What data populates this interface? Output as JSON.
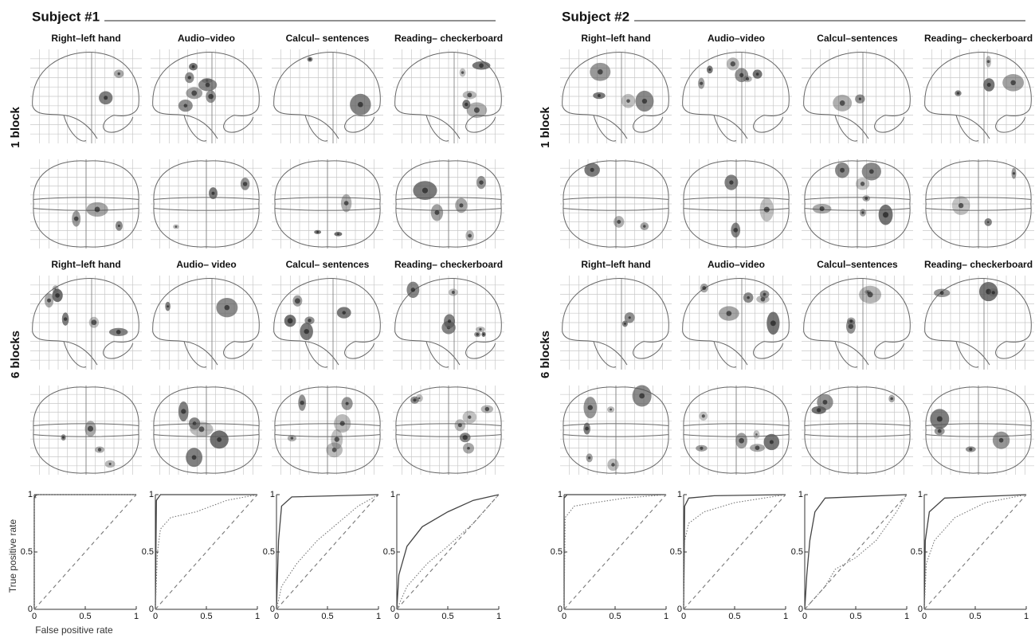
{
  "subjects": [
    {
      "title": "Subject #1",
      "rows": [
        {
          "label": "1 block",
          "columns": [
            "Right–left hand",
            "Audio–video",
            "Calcul– sentences",
            "Reading– checkerboard"
          ]
        },
        {
          "label": "6 blocks",
          "columns": [
            "Right–left hand",
            "Audio– video",
            "Calcul– sentences",
            "Reading– checkerboard"
          ]
        }
      ]
    },
    {
      "title": "Subject #2",
      "rows": [
        {
          "label": "1 block",
          "columns": [
            "Right–left hand",
            "Audio–video",
            "Calcul–sentences",
            "Reading– checkerboard"
          ]
        },
        {
          "label": "6 blocks",
          "columns": [
            "Right–left hand",
            "Audio–video",
            "Calcul–sentences",
            "Reading– checkerboard"
          ]
        }
      ]
    }
  ],
  "chart_data": [
    {
      "type": "line",
      "y_label": "True positive rate",
      "x_label": "False positive rate",
      "xlim": [
        0,
        1
      ],
      "ylim": [
        0,
        1
      ],
      "xticks": [
        0,
        0.5,
        1
      ],
      "yticks": [
        0,
        0.5,
        1
      ],
      "series": [
        {
          "color": "#444444",
          "style": "solid",
          "x": [
            0,
            0,
            0.02,
            1
          ],
          "values": [
            0,
            0.97,
            1,
            1
          ]
        },
        {
          "color": "#777777",
          "style": "dotted",
          "x": [
            0,
            0,
            0.03,
            1
          ],
          "values": [
            0,
            0.95,
            1,
            1
          ]
        },
        {
          "color": "#777777",
          "style": "dashed",
          "x": [
            0,
            1
          ],
          "values": [
            0,
            1
          ]
        }
      ]
    },
    {
      "type": "line",
      "xlim": [
        0,
        1
      ],
      "ylim": [
        0,
        1
      ],
      "xticks": [
        0,
        0.5,
        1
      ],
      "yticks": [
        0,
        0.5,
        1
      ],
      "series": [
        {
          "color": "#444444",
          "style": "solid",
          "x": [
            0,
            0.01,
            0.05,
            1
          ],
          "values": [
            0,
            0.95,
            1,
            1
          ]
        },
        {
          "color": "#777777",
          "style": "dotted",
          "x": [
            0,
            0.02,
            0.05,
            0.15,
            0.4,
            0.55,
            0.7,
            1
          ],
          "values": [
            0,
            0.5,
            0.7,
            0.8,
            0.85,
            0.9,
            0.95,
            1
          ]
        },
        {
          "color": "#777777",
          "style": "dashed",
          "x": [
            0,
            1
          ],
          "values": [
            0,
            1
          ]
        }
      ]
    },
    {
      "type": "line",
      "xlim": [
        0,
        1
      ],
      "ylim": [
        0,
        1
      ],
      "xticks": [
        0,
        0.5,
        1
      ],
      "yticks": [
        0,
        0.5,
        1
      ],
      "series": [
        {
          "color": "#444444",
          "style": "solid",
          "x": [
            0,
            0.02,
            0.05,
            0.15,
            1
          ],
          "values": [
            0,
            0.6,
            0.9,
            0.98,
            1
          ]
        },
        {
          "color": "#777777",
          "style": "dotted",
          "x": [
            0,
            0.05,
            0.2,
            0.4,
            0.6,
            0.8,
            1
          ],
          "values": [
            0,
            0.2,
            0.4,
            0.6,
            0.75,
            0.9,
            1
          ]
        },
        {
          "color": "#777777",
          "style": "dashed",
          "x": [
            0,
            1
          ],
          "values": [
            0,
            1
          ]
        }
      ]
    },
    {
      "type": "line",
      "xlim": [
        0,
        1
      ],
      "ylim": [
        0,
        1
      ],
      "xticks": [
        0,
        0.5,
        1
      ],
      "yticks": [
        0,
        0.5,
        1
      ],
      "series": [
        {
          "color": "#444444",
          "style": "solid",
          "x": [
            0,
            0.02,
            0.1,
            0.25,
            0.5,
            0.75,
            1
          ],
          "values": [
            0,
            0.3,
            0.55,
            0.72,
            0.85,
            0.95,
            1
          ]
        },
        {
          "color": "#777777",
          "style": "dotted",
          "x": [
            0,
            0.1,
            0.3,
            0.5,
            0.75,
            1
          ],
          "values": [
            0,
            0.2,
            0.4,
            0.55,
            0.75,
            1
          ]
        },
        {
          "color": "#777777",
          "style": "dashed",
          "x": [
            0,
            1
          ],
          "values": [
            0,
            1
          ]
        }
      ]
    },
    {
      "type": "line",
      "xlim": [
        0,
        1
      ],
      "ylim": [
        0,
        1
      ],
      "xticks": [
        0,
        0.5,
        1
      ],
      "yticks": [
        0,
        0.5,
        1
      ],
      "series": [
        {
          "color": "#444444",
          "style": "solid",
          "x": [
            0,
            0,
            0.03,
            1
          ],
          "values": [
            0,
            0.97,
            1,
            1
          ]
        },
        {
          "color": "#777777",
          "style": "dotted",
          "x": [
            0,
            0.01,
            0.1,
            0.3,
            0.6,
            1
          ],
          "values": [
            0,
            0.8,
            0.9,
            0.93,
            0.97,
            1
          ]
        },
        {
          "color": "#777777",
          "style": "dashed",
          "x": [
            0,
            1
          ],
          "values": [
            0,
            1
          ]
        }
      ]
    },
    {
      "type": "line",
      "xlim": [
        0,
        1
      ],
      "ylim": [
        0,
        1
      ],
      "xticks": [
        0,
        0.5,
        1
      ],
      "yticks": [
        0,
        0.5,
        1
      ],
      "series": [
        {
          "color": "#444444",
          "style": "solid",
          "x": [
            0,
            0.01,
            0.05,
            0.3,
            1
          ],
          "values": [
            0,
            0.9,
            0.97,
            0.99,
            1
          ]
        },
        {
          "color": "#777777",
          "style": "dotted",
          "x": [
            0,
            0.01,
            0.05,
            0.2,
            0.5,
            1
          ],
          "values": [
            0,
            0.6,
            0.75,
            0.85,
            0.93,
            1
          ]
        },
        {
          "color": "#777777",
          "style": "dashed",
          "x": [
            0,
            1
          ],
          "values": [
            0,
            1
          ]
        }
      ]
    },
    {
      "type": "line",
      "xlim": [
        0,
        1
      ],
      "ylim": [
        0,
        1
      ],
      "xticks": [
        0,
        0.5,
        1
      ],
      "yticks": [
        0,
        0.5,
        1
      ],
      "series": [
        {
          "color": "#444444",
          "style": "solid",
          "x": [
            0,
            0.02,
            0.05,
            0.1,
            0.2,
            1
          ],
          "values": [
            0,
            0.3,
            0.6,
            0.85,
            0.97,
            1
          ]
        },
        {
          "color": "#777777",
          "style": "dotted",
          "x": [
            0,
            0.1,
            0.2,
            0.3,
            0.5,
            0.7,
            0.9,
            1
          ],
          "values": [
            0,
            0.1,
            0.2,
            0.35,
            0.45,
            0.6,
            0.85,
            1
          ]
        },
        {
          "color": "#777777",
          "style": "dashed",
          "x": [
            0,
            1
          ],
          "values": [
            0,
            1
          ]
        }
      ]
    },
    {
      "type": "line",
      "xlim": [
        0,
        1
      ],
      "ylim": [
        0,
        1
      ],
      "xticks": [
        0,
        0.5,
        1
      ],
      "yticks": [
        0,
        0.5,
        1
      ],
      "series": [
        {
          "color": "#444444",
          "style": "solid",
          "x": [
            0,
            0.01,
            0.05,
            0.2,
            1
          ],
          "values": [
            0,
            0.6,
            0.85,
            0.97,
            1
          ]
        },
        {
          "color": "#777777",
          "style": "dotted",
          "x": [
            0,
            0.02,
            0.1,
            0.3,
            0.6,
            1
          ],
          "values": [
            0,
            0.4,
            0.6,
            0.8,
            0.93,
            1
          ]
        },
        {
          "color": "#777777",
          "style": "dashed",
          "x": [
            0,
            1
          ],
          "values": [
            0,
            1
          ]
        }
      ]
    }
  ]
}
